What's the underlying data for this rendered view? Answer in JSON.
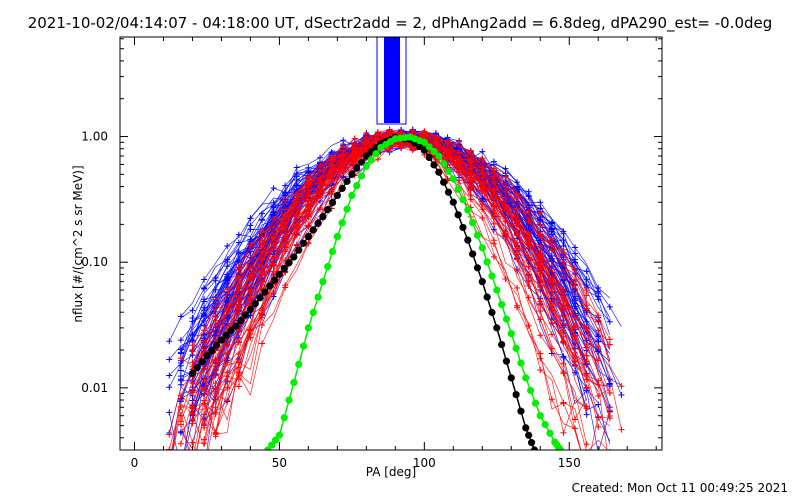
{
  "title": "2021-10-02/04:14:07 - 04:18:00 UT, dSectr2add = 2, dPhAng2add = 6.8deg, dPA290_est= -0.0deg",
  "created": "Created: Mon Oct 11 00:49:25 2021",
  "colors": {
    "background": "#ffffff",
    "axes": "#000000",
    "series_red": "#ff0000",
    "series_blue": "#0000ff",
    "fit_black": "#000000",
    "fit_green": "#00ee00"
  },
  "chart_data": {
    "type": "line",
    "xlabel": "PA [deg]",
    "ylabel": "nflux [#/(cm^2 s sr MeV)]",
    "xlim": [
      -5,
      182
    ],
    "ylim": [
      0.0032,
      6.2
    ],
    "yscale": "log",
    "x_ticks": [
      0,
      50,
      100,
      150
    ],
    "x_tick_labels": [
      "0",
      "50",
      "100",
      "150"
    ],
    "y_ticks": [
      0.01,
      0.1,
      1.0
    ],
    "y_tick_labels": [
      "0.01",
      "0.10",
      "1.00"
    ],
    "grid": false,
    "series": [
      {
        "color": "#000000",
        "marker": "filled-circle",
        "x": [
          20,
          25,
          30,
          35,
          40,
          45,
          50,
          55,
          60,
          65,
          70,
          75,
          80,
          85,
          90,
          95,
          100,
          105,
          110,
          115,
          120,
          125,
          130,
          135,
          138
        ],
        "y": [
          0.013,
          0.018,
          0.024,
          0.031,
          0.042,
          0.058,
          0.08,
          0.11,
          0.16,
          0.23,
          0.34,
          0.5,
          0.7,
          0.88,
          0.98,
          0.95,
          0.78,
          0.52,
          0.3,
          0.15,
          0.07,
          0.03,
          0.012,
          0.0048,
          0.0032
        ]
      },
      {
        "color": "#00ee00",
        "marker": "filled-circle",
        "x": [
          46,
          50,
          55,
          60,
          65,
          70,
          75,
          80,
          85,
          90,
          95,
          100,
          105,
          110,
          115,
          120,
          125,
          130,
          135,
          140,
          145,
          147
        ],
        "y": [
          0.0032,
          0.0042,
          0.011,
          0.03,
          0.07,
          0.16,
          0.34,
          0.58,
          0.82,
          0.96,
          0.99,
          0.9,
          0.7,
          0.46,
          0.26,
          0.13,
          0.06,
          0.027,
          0.012,
          0.006,
          0.0037,
          0.0032
        ]
      }
    ]
  }
}
